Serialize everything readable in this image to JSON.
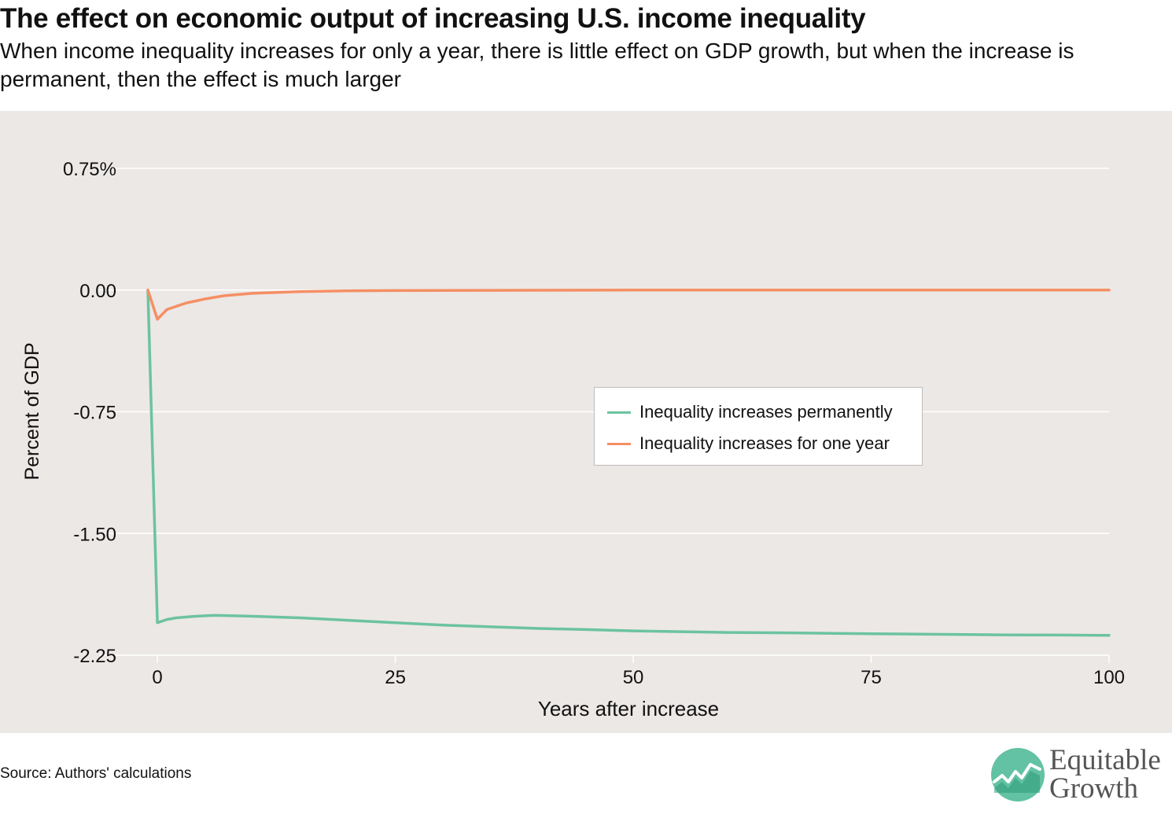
{
  "header": {
    "title": "The effect on economic output of increasing U.S. income inequality",
    "subtitle": "When income inequality increases for only a year, there is little effect on GDP growth, but when the increase is permanent, then the effect is much larger"
  },
  "footer": {
    "source": "Source: Authors' calculations",
    "logo_line1": "Equitable",
    "logo_line2": "Growth"
  },
  "colors": {
    "background": "#ece8e6",
    "permanent": "#6cc3a0",
    "one_year": "#f58f64",
    "logo_green": "#63c2a3",
    "logo_text": "#555555"
  },
  "chart_data": {
    "type": "line",
    "title": "The effect on economic output of increasing U.S. income inequality",
    "xlabel": "Years after increase",
    "ylabel": "Percent of GDP",
    "xlim": [
      -1,
      100
    ],
    "ylim": [
      -2.25,
      0.75
    ],
    "xticks": [
      0,
      25,
      50,
      75,
      100
    ],
    "xtick_labels": [
      "0",
      "25",
      "50",
      "75",
      "100"
    ],
    "yticks": [
      0.75,
      0,
      -0.75,
      -1.5,
      -2.25
    ],
    "ytick_labels": [
      "0.75%",
      "0.00",
      "-0.75",
      "-1.50",
      "-2.25"
    ],
    "grid": "horizontal",
    "legend_position": "center-right",
    "series": [
      {
        "name": "Inequality increases permanently",
        "color": "#6cc3a0",
        "x": [
          -1,
          0,
          1,
          2,
          4,
          6,
          8,
          10,
          15,
          20,
          25,
          30,
          35,
          40,
          45,
          50,
          55,
          60,
          65,
          70,
          75,
          80,
          85,
          90,
          95,
          100
        ],
        "y": [
          0,
          -2.05,
          -2.03,
          -2.02,
          -2.01,
          -2.005,
          -2.007,
          -2.01,
          -2.02,
          -2.035,
          -2.05,
          -2.065,
          -2.075,
          -2.085,
          -2.092,
          -2.1,
          -2.105,
          -2.11,
          -2.112,
          -2.115,
          -2.118,
          -2.12,
          -2.123,
          -2.125,
          -2.126,
          -2.128
        ]
      },
      {
        "name": "Inequality increases for one year",
        "color": "#f58f64",
        "x": [
          -1,
          0,
          1,
          2,
          3,
          5,
          7,
          10,
          15,
          20,
          25,
          30,
          40,
          50,
          60,
          70,
          80,
          90,
          100
        ],
        "y": [
          0,
          -0.18,
          -0.12,
          -0.1,
          -0.08,
          -0.055,
          -0.035,
          -0.02,
          -0.01,
          -0.005,
          -0.003,
          -0.002,
          -0.001,
          0,
          0,
          0,
          0,
          0,
          0
        ]
      }
    ]
  }
}
